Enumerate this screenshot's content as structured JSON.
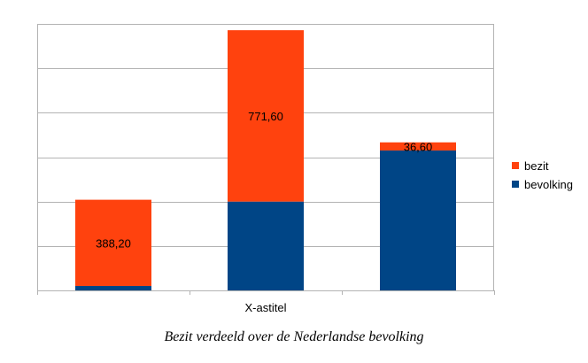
{
  "caption": "Bezit verdeeld over de Nederlandse bevolking",
  "chart_data": {
    "type": "bar",
    "stacked": true,
    "xlabel": "X-astitel",
    "categories": [
      "",
      "",
      ""
    ],
    "ylim": [
      0,
      1200
    ],
    "grid": true,
    "legend_position": "right",
    "series": [
      {
        "name": "bevolking",
        "values": [
          20,
          400,
          630
        ],
        "color": "#004586",
        "labels": [
          "",
          "",
          ""
        ]
      },
      {
        "name": "bezit",
        "values": [
          388.2,
          771.6,
          36.6
        ],
        "color": "#ff420e",
        "labels": [
          "388,20",
          "771,60",
          "36,60"
        ]
      }
    ],
    "legend": [
      {
        "name": "bezit",
        "color": "#ff420e"
      },
      {
        "name": "bevolking",
        "color": "#004586"
      }
    ]
  }
}
